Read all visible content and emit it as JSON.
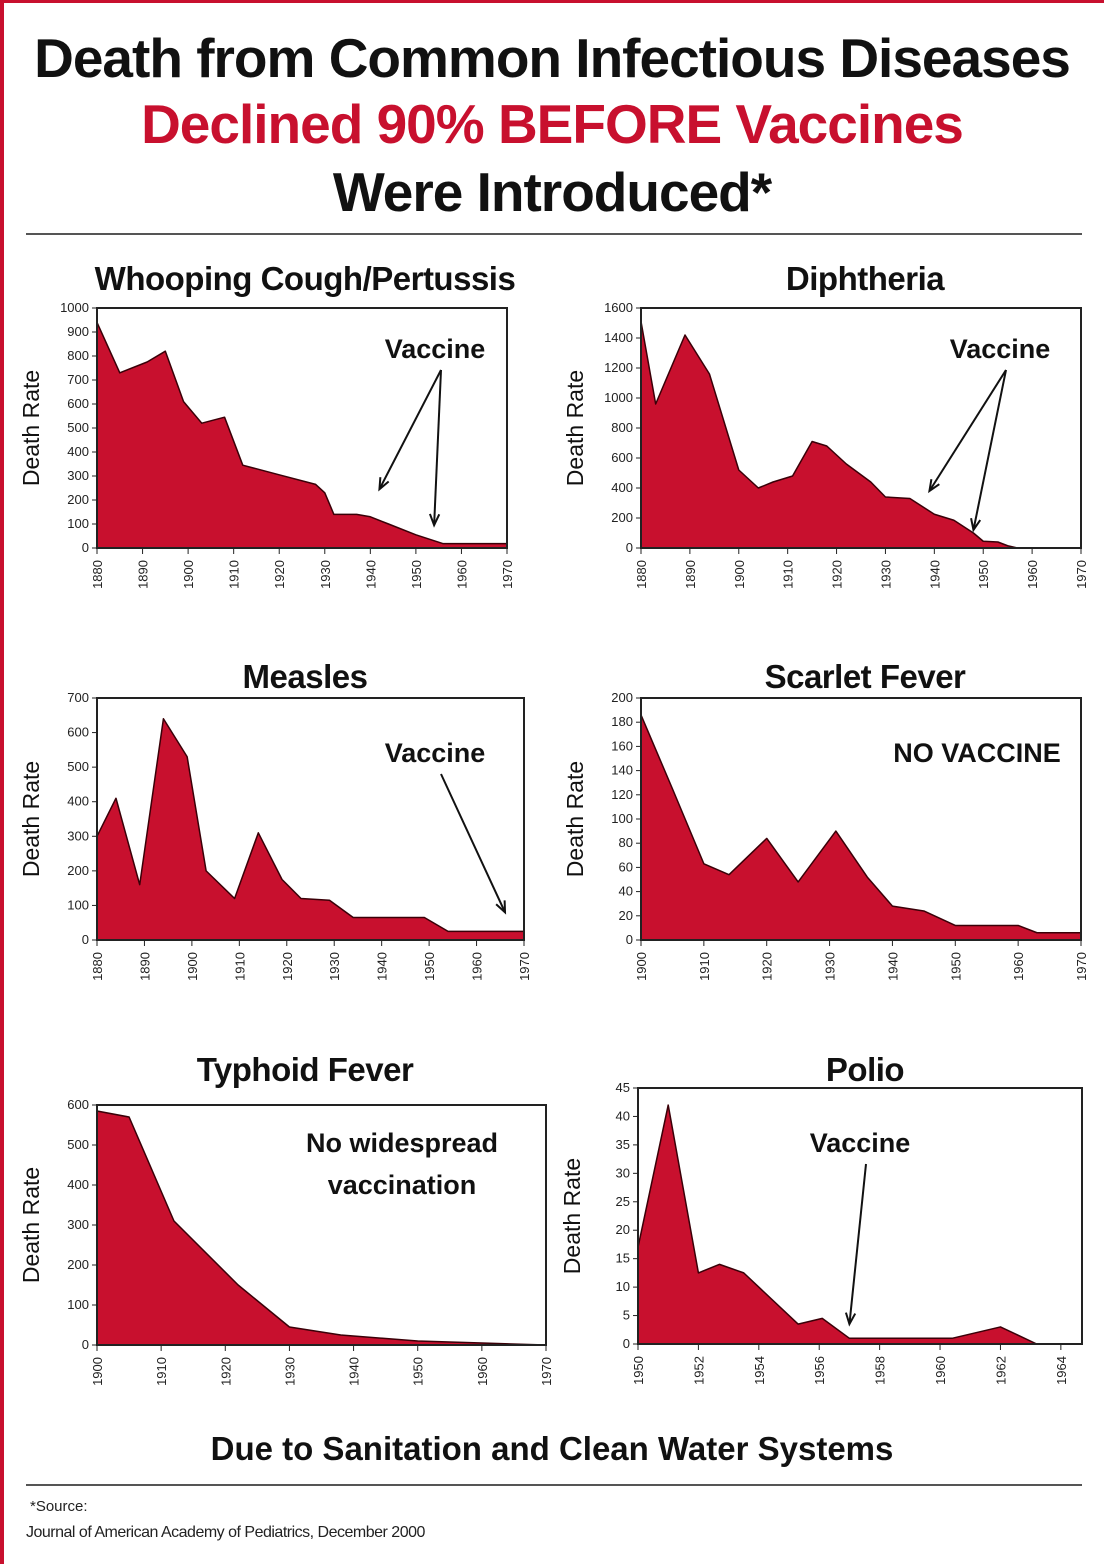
{
  "title": {
    "line1": "Death from Common Infectious Diseases",
    "line2": "Declined 90% BEFORE Vaccines",
    "line3": "Were Introduced*"
  },
  "colors": {
    "fill": "#c8102e",
    "accent": "#c8102e",
    "text": "#111111"
  },
  "footer": {
    "caption": "Due to Sanitation and Clean Water Systems",
    "source_label": "*Source:",
    "source_text": "Journal of American Academy of Pediatrics, December 2000"
  },
  "chart_data": [
    {
      "id": "pertussis",
      "type": "area",
      "title": "Whooping Cough/Pertussis",
      "ylabel": "Death Rate",
      "xlim": [
        1880,
        1970
      ],
      "xticks": [
        1880,
        1890,
        1900,
        1910,
        1920,
        1930,
        1940,
        1950,
        1960,
        1970
      ],
      "ylim": [
        0,
        1000
      ],
      "yticks": [
        0,
        100,
        200,
        300,
        400,
        500,
        600,
        700,
        800,
        900,
        1000
      ],
      "x": [
        1880,
        1885,
        1891,
        1895,
        1899,
        1903,
        1908,
        1912,
        1920,
        1928,
        1930,
        1932,
        1937,
        1940,
        1944,
        1950,
        1956,
        1960,
        1970
      ],
      "y": [
        940,
        730,
        775,
        820,
        610,
        520,
        545,
        345,
        305,
        265,
        230,
        140,
        140,
        130,
        100,
        55,
        18,
        18,
        18
      ],
      "annotation": "Vaccine",
      "arrow_targets": [
        [
          1942,
          245
        ],
        [
          1954,
          95
        ]
      ]
    },
    {
      "id": "diphtheria",
      "type": "area",
      "title": "Diphtheria",
      "ylabel": "Death Rate",
      "xlim": [
        1880,
        1970
      ],
      "xticks": [
        1880,
        1890,
        1900,
        1910,
        1920,
        1930,
        1940,
        1950,
        1960,
        1970
      ],
      "ylim": [
        0,
        1600
      ],
      "yticks": [
        0,
        200,
        400,
        600,
        800,
        1000,
        1200,
        1400,
        1600
      ],
      "x": [
        1880,
        1883,
        1889,
        1894,
        1900,
        1904,
        1907,
        1911,
        1915,
        1918,
        1922,
        1927,
        1930,
        1935,
        1940,
        1944,
        1948,
        1950,
        1953,
        1955,
        1957,
        1960,
        1970
      ],
      "y": [
        1510,
        960,
        1420,
        1160,
        520,
        400,
        440,
        480,
        710,
        680,
        560,
        440,
        340,
        330,
        225,
        185,
        100,
        45,
        40,
        15,
        0,
        0,
        0
      ],
      "annotation": "Vaccine",
      "arrow_targets": [
        [
          1939,
          380
        ],
        [
          1948,
          120
        ]
      ]
    },
    {
      "id": "measles",
      "type": "area",
      "title": "Measles",
      "ylabel": "Death Rate",
      "xlim": [
        1880,
        1970
      ],
      "xticks": [
        1880,
        1890,
        1900,
        1910,
        1920,
        1930,
        1940,
        1950,
        1960,
        1970
      ],
      "ylim": [
        0,
        700
      ],
      "yticks": [
        0,
        100,
        200,
        300,
        400,
        500,
        600,
        700
      ],
      "x": [
        1880,
        1884,
        1889,
        1894,
        1899,
        1903,
        1909,
        1914,
        1919,
        1923,
        1929,
        1934,
        1939,
        1949,
        1954,
        1960,
        1965,
        1970
      ],
      "y": [
        300,
        410,
        160,
        640,
        530,
        200,
        120,
        310,
        175,
        120,
        115,
        65,
        65,
        65,
        25,
        25,
        25,
        25
      ],
      "annotation": "Vaccine",
      "arrow_targets": [
        [
          1966,
          80
        ]
      ]
    },
    {
      "id": "scarlet",
      "type": "area",
      "title": "Scarlet Fever",
      "ylabel": "Death Rate",
      "xlim": [
        1900,
        1970
      ],
      "xticks": [
        1900,
        1910,
        1920,
        1930,
        1940,
        1950,
        1960,
        1970
      ],
      "ylim": [
        0,
        200
      ],
      "yticks": [
        0,
        20,
        40,
        60,
        80,
        100,
        120,
        140,
        160,
        180,
        200
      ],
      "x": [
        1900,
        1905,
        1910,
        1914,
        1920,
        1925,
        1931,
        1936,
        1940,
        1945,
        1950,
        1960,
        1963,
        1970
      ],
      "y": [
        186,
        125,
        63,
        54,
        84,
        48,
        90,
        52,
        28,
        24,
        12,
        12,
        6,
        6
      ],
      "annotation": "NO VACCINE",
      "arrow_targets": []
    },
    {
      "id": "typhoid",
      "type": "area",
      "title": "Typhoid Fever",
      "ylabel": "Death Rate",
      "xlim": [
        1900,
        1970
      ],
      "xticks": [
        1900,
        1910,
        1920,
        1930,
        1940,
        1950,
        1960,
        1970
      ],
      "ylim": [
        0,
        600
      ],
      "yticks": [
        0,
        100,
        200,
        300,
        400,
        500,
        600
      ],
      "x": [
        1900,
        1905,
        1912,
        1922,
        1930,
        1938,
        1950,
        1960,
        1970
      ],
      "y": [
        585,
        570,
        310,
        150,
        45,
        25,
        10,
        5,
        0
      ],
      "annotation": "No widespread\nvaccination",
      "arrow_targets": []
    },
    {
      "id": "polio",
      "type": "area",
      "title": "Polio",
      "ylabel": "Death Rate",
      "xlim": [
        1950,
        1964.7
      ],
      "xticks": [
        1950,
        1952,
        1954,
        1956,
        1958,
        1960,
        1962,
        1964
      ],
      "ylim": [
        0,
        45
      ],
      "yticks": [
        0,
        5,
        10,
        15,
        20,
        25,
        30,
        35,
        40,
        45
      ],
      "x": [
        1950,
        1951,
        1952,
        1952.7,
        1953.5,
        1955.3,
        1956.1,
        1957,
        1958,
        1960.4,
        1962,
        1963.2,
        1964.7
      ],
      "y": [
        17,
        42,
        12.5,
        14,
        12.5,
        3.5,
        4.5,
        1,
        1,
        1,
        3,
        0,
        0
      ],
      "annotation": "Vaccine",
      "arrow_targets": [
        [
          1957,
          3.5
        ]
      ]
    }
  ]
}
